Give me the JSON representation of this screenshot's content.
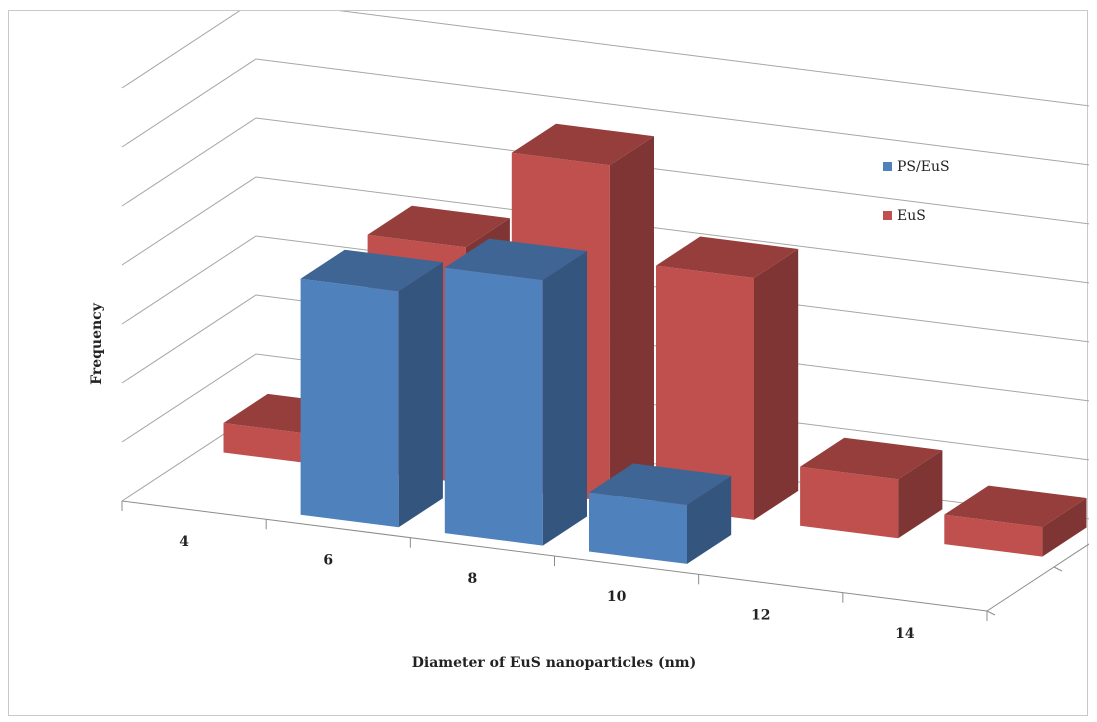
{
  "chart_data": {
    "type": "bar",
    "title": "",
    "xlabel": "Diameter of EuS nanoparticles (nm)",
    "ylabel": "Frequency",
    "categories": [
      "4",
      "6",
      "8",
      "10",
      "12",
      "14"
    ],
    "series": [
      {
        "name": "PS/EuS",
        "color": "#4f81bd",
        "values": [
          0,
          4,
          4.5,
          1,
          0,
          0
        ]
      },
      {
        "name": "EuS",
        "color": "#c0504d",
        "values": [
          0.5,
          4,
          5.7,
          4.1,
          1,
          0.5
        ]
      }
    ],
    "ylim": [
      0,
      7
    ],
    "grid": true,
    "legend_position": "right",
    "style": "3d-column"
  }
}
